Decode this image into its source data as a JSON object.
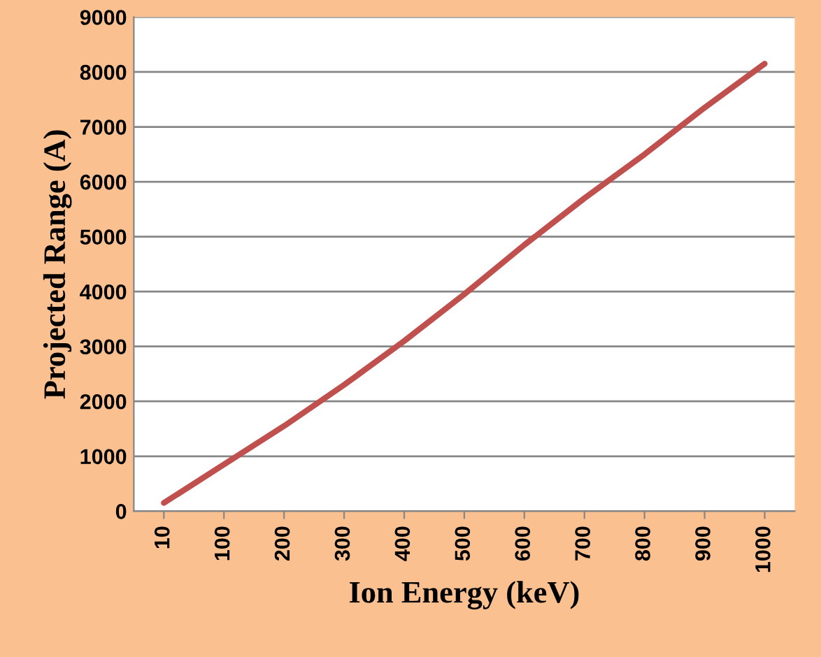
{
  "chart_data": {
    "type": "line",
    "xlabel": "Ion Energy (keV)",
    "ylabel": "Projected Range (A)",
    "categories": [
      "10",
      "100",
      "200",
      "300",
      "400",
      "500",
      "600",
      "700",
      "800",
      "900",
      "1000"
    ],
    "series": [
      {
        "color": "#c0504d",
        "values": [
          150,
          850,
          1550,
          2300,
          3100,
          3950,
          4850,
          5700,
          6500,
          7350,
          8150
        ]
      }
    ],
    "ylim": [
      0,
      9000
    ],
    "yticks": [
      0,
      1000,
      2000,
      3000,
      4000,
      5000,
      6000,
      7000,
      8000,
      9000
    ],
    "grid": "y",
    "marker": "none",
    "line_style": "solid"
  }
}
